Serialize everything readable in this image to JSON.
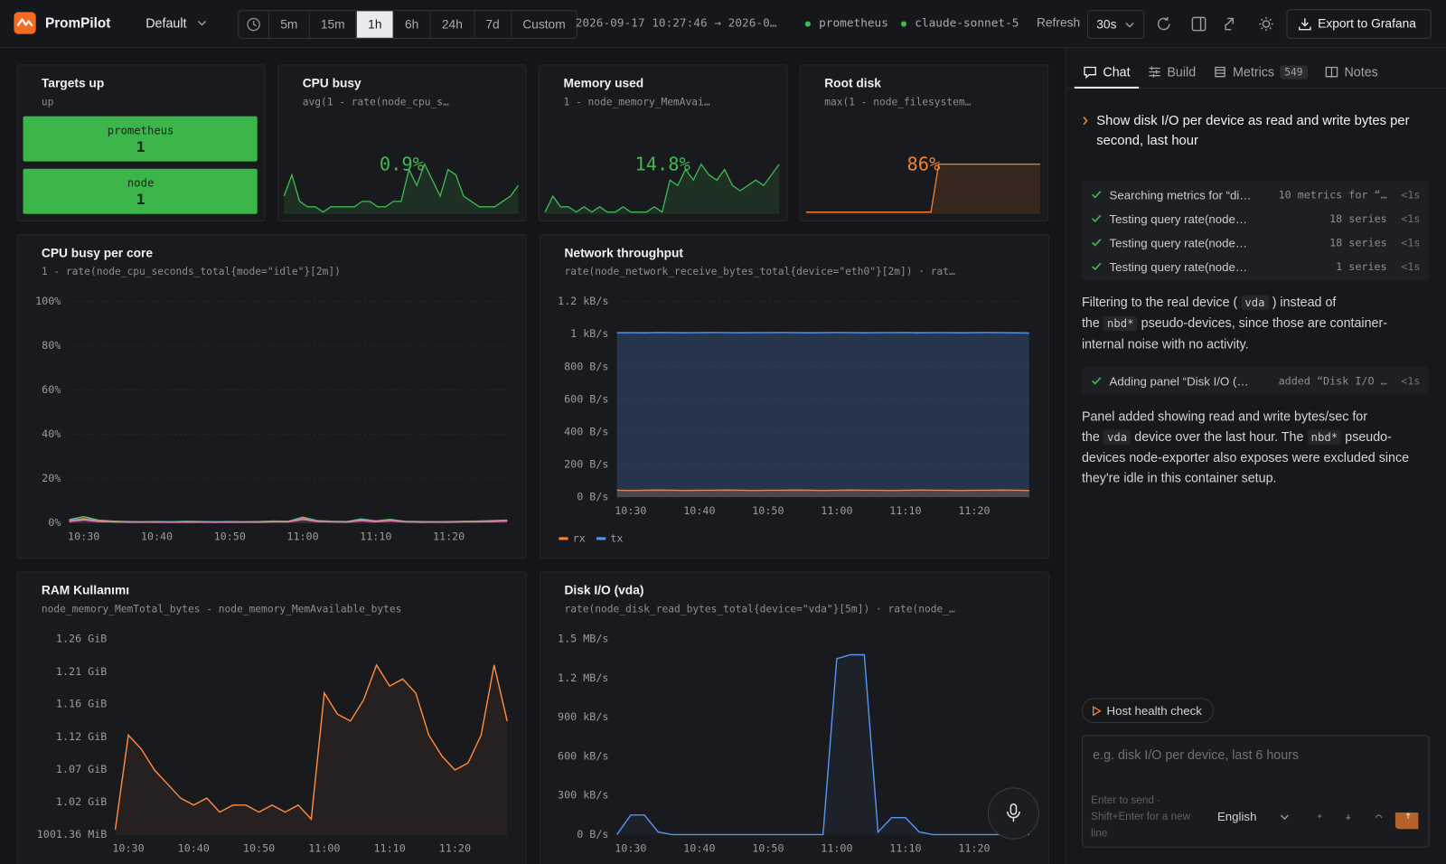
{
  "header": {
    "brand": "PromPilot",
    "workspace": "Default",
    "ranges": [
      "5m",
      "15m",
      "1h",
      "6h",
      "24h",
      "7d",
      "Custom"
    ],
    "selected_range": 2,
    "time_range": "2026-09-17 10:27:46 → 2026-0…",
    "datasource": "prometheus",
    "model": "claude-sonnet-5",
    "refresh_label": "Refresh",
    "refresh": "30s",
    "export": "Export to Grafana"
  },
  "panels": [
    {
      "type": "stat",
      "title": "Targets up",
      "query": "up",
      "items": [
        {
          "label": "prometheus",
          "value": 1
        },
        {
          "label": "node",
          "value": 1
        }
      ],
      "color": "#3cb54a"
    },
    {
      "type": "stat",
      "title": "CPU busy",
      "query": "avg(1 - rate(node_cpu_s…",
      "value": 0.9,
      "value_label": "0.9%",
      "color": "#3fb950",
      "spark": [
        0.8,
        1.2,
        0.7,
        0.6,
        0.6,
        0.5,
        0.6,
        0.6,
        0.6,
        0.6,
        0.7,
        0.7,
        0.6,
        0.6,
        0.7,
        0.7,
        1.3,
        1.0,
        1.4,
        1.1,
        0.8,
        1.3,
        1.2,
        0.8,
        0.7,
        0.6,
        0.6,
        0.6,
        0.7,
        0.8,
        1.0
      ]
    },
    {
      "type": "stat",
      "title": "Memory used",
      "query": "1 - node_memory_MemAvai…",
      "value": 14.8,
      "value_label": "14.8%",
      "color": "#3fb950",
      "spark": [
        14.5,
        14.8,
        14.6,
        14.6,
        14.5,
        14.6,
        14.5,
        14.6,
        14.5,
        14.5,
        14.6,
        14.5,
        14.5,
        14.5,
        14.6,
        14.5,
        15.1,
        15.0,
        15.3,
        15.1,
        15.4,
        15.2,
        15.1,
        15.3,
        15.0,
        14.9,
        15.0,
        15.1,
        15.0,
        15.2,
        15.4
      ]
    },
    {
      "type": "stat",
      "title": "Root disk",
      "query": "max(1 - node_filesystem…",
      "value": 86,
      "value_label": "86%",
      "color": "#f0802e",
      "spark": [
        85.5,
        85.5,
        85.5,
        85.5,
        85.5,
        85.5,
        85.5,
        85.5,
        85.5,
        85.5,
        85.5,
        85.5,
        85.5,
        85.5,
        85.5,
        85.5,
        85.5,
        86.3,
        86.3,
        86.3,
        86.3,
        86.3,
        86.3,
        86.3,
        86.3,
        86.3,
        86.3,
        86.3,
        86.3,
        86.3,
        86.3
      ]
    },
    {
      "type": "line",
      "title": "CPU busy per core",
      "query": "1 - rate(node_cpu_seconds_total{mode=\"idle\"}[2m])",
      "x": [
        "10:28",
        "10:30",
        "10:32",
        "10:34",
        "10:36",
        "10:38",
        "10:40",
        "10:42",
        "10:44",
        "10:46",
        "10:48",
        "10:50",
        "10:52",
        "10:54",
        "10:56",
        "10:58",
        "11:00",
        "11:02",
        "11:04",
        "11:06",
        "11:08",
        "11:10",
        "11:12",
        "11:14",
        "11:16",
        "11:18",
        "11:20",
        "11:22",
        "11:24",
        "11:26",
        "11:28"
      ],
      "xlim": [
        "10:28",
        "11:28"
      ],
      "xticks": [
        "10:30",
        "10:40",
        "10:50",
        "11:00",
        "11:10",
        "11:20"
      ],
      "ylim": [
        0,
        100
      ],
      "yticks": [
        {
          "value": 0,
          "label": "0%"
        },
        {
          "value": 20,
          "label": "20%"
        },
        {
          "value": 40,
          "label": "40%"
        },
        {
          "value": 60,
          "label": "60%"
        },
        {
          "value": 80,
          "label": "80%"
        },
        {
          "value": 100,
          "label": "100%"
        }
      ],
      "grid": true,
      "series": [
        {
          "color": "#73bf69",
          "values": [
            1.5,
            2.8,
            1.2,
            0.8,
            0.6,
            0.5,
            0.6,
            0.5,
            0.7,
            0.6,
            0.5,
            0.6,
            0.5,
            0.6,
            0.8,
            0.7,
            2.6,
            1.0,
            0.7,
            0.6,
            1.8,
            0.9,
            1.6,
            0.7,
            0.6,
            0.5,
            0.6,
            0.7,
            0.8,
            1.0,
            1.2
          ]
        },
        {
          "color": "#5794f2",
          "values": [
            1.0,
            2.0,
            0.9,
            0.6,
            0.5,
            0.4,
            0.5,
            0.4,
            0.5,
            0.5,
            0.4,
            0.5,
            0.4,
            0.5,
            0.6,
            0.6,
            2.2,
            0.8,
            0.6,
            0.5,
            1.5,
            0.7,
            1.3,
            0.6,
            0.5,
            0.4,
            0.5,
            0.6,
            0.6,
            0.8,
            1.0
          ]
        },
        {
          "color": "#ff9830",
          "values": [
            0.8,
            1.6,
            0.8,
            0.5,
            0.4,
            0.4,
            0.4,
            0.3,
            0.4,
            0.4,
            0.3,
            0.4,
            0.4,
            0.4,
            0.5,
            0.5,
            1.8,
            0.7,
            0.5,
            0.4,
            1.2,
            0.6,
            1.1,
            0.5,
            0.4,
            0.4,
            0.4,
            0.5,
            0.5,
            0.7,
            0.9
          ]
        },
        {
          "color": "#e070b8",
          "values": [
            0.6,
            1.3,
            0.6,
            0.4,
            0.3,
            0.3,
            0.3,
            0.3,
            0.3,
            0.3,
            0.3,
            0.3,
            0.3,
            0.3,
            0.4,
            0.4,
            1.5,
            0.6,
            0.4,
            0.3,
            1.0,
            0.5,
            0.9,
            0.4,
            0.3,
            0.3,
            0.3,
            0.4,
            0.4,
            0.6,
            0.8
          ]
        }
      ]
    },
    {
      "type": "line",
      "title": "Network throughput",
      "query": "rate(node_network_receive_bytes_total{device=\"eth0\"}[2m]) · rat…",
      "x": [
        "10:28",
        "10:30",
        "10:32",
        "10:34",
        "10:36",
        "10:38",
        "10:40",
        "10:42",
        "10:44",
        "10:46",
        "10:48",
        "10:50",
        "10:52",
        "10:54",
        "10:56",
        "10:58",
        "11:00",
        "11:02",
        "11:04",
        "11:06",
        "11:08",
        "11:10",
        "11:12",
        "11:14",
        "11:16",
        "11:18",
        "11:20",
        "11:22",
        "11:24",
        "11:26",
        "11:28"
      ],
      "xlim": [
        "10:28",
        "11:28"
      ],
      "xticks": [
        "10:30",
        "10:40",
        "10:50",
        "11:00",
        "11:10",
        "11:20"
      ],
      "ylim": [
        0,
        1200
      ],
      "yticks": [
        {
          "value": 0,
          "label": "0 B/s"
        },
        {
          "value": 200,
          "label": "200 B/s"
        },
        {
          "value": 400,
          "label": "400 B/s"
        },
        {
          "value": 600,
          "label": "600 B/s"
        },
        {
          "value": 800,
          "label": "800 B/s"
        },
        {
          "value": 1000,
          "label": "1 kB/s"
        },
        {
          "value": 1200,
          "label": "1.2 kB/s"
        }
      ],
      "grid": true,
      "area": true,
      "series": [
        {
          "name": "rx",
          "color": "#ff7f32",
          "values": [
            42,
            41,
            42,
            43,
            42,
            41,
            42,
            42,
            43,
            42,
            41,
            42,
            42,
            43,
            42,
            41,
            42,
            43,
            42,
            42,
            41,
            42,
            43,
            42,
            42,
            41,
            42,
            42,
            43,
            42,
            41
          ]
        },
        {
          "name": "tx",
          "color": "#5794f2",
          "values": [
            1008,
            1009,
            1008,
            1010,
            1009,
            1008,
            1009,
            1010,
            1009,
            1008,
            1009,
            1009,
            1010,
            1009,
            1008,
            1009,
            1010,
            1009,
            1008,
            1009,
            1009,
            1010,
            1008,
            1009,
            1009,
            1008,
            1009,
            1010,
            1009,
            1008,
            1007
          ]
        }
      ]
    },
    {
      "type": "line",
      "title": "RAM Kullanımı",
      "query": "node_memory_MemTotal_bytes - node_memory_MemAvailable_bytes",
      "x": [
        "10:28",
        "10:30",
        "10:32",
        "10:34",
        "10:36",
        "10:38",
        "10:40",
        "10:42",
        "10:44",
        "10:46",
        "10:48",
        "10:50",
        "10:52",
        "10:54",
        "10:56",
        "10:58",
        "11:00",
        "11:02",
        "11:04",
        "11:06",
        "11:08",
        "11:10",
        "11:12",
        "11:14",
        "11:16",
        "11:18",
        "11:20",
        "11:22",
        "11:24",
        "11:26",
        "11:28"
      ],
      "xlim": [
        "10:28",
        "11:28"
      ],
      "xticks": [
        "10:30",
        "10:40",
        "10:50",
        "11:00",
        "11:10",
        "11:20"
      ],
      "ylim": [
        0.97789,
        1.257
      ],
      "yticks": [
        {
          "value": 0.97789,
          "label": "1001.36 MiB"
        },
        {
          "value": 1.024,
          "label": "1.02 GiB"
        },
        {
          "value": 1.071,
          "label": "1.07 GiB"
        },
        {
          "value": 1.117,
          "label": "1.12 GiB"
        },
        {
          "value": 1.164,
          "label": "1.16 GiB"
        },
        {
          "value": 1.21,
          "label": "1.21 GiB"
        },
        {
          "value": 1.257,
          "label": "1.26 GiB"
        }
      ],
      "grid": false,
      "series": [
        {
          "color": "#ff8b3d",
          "values": [
            0.985,
            1.12,
            1.1,
            1.07,
            1.05,
            1.03,
            1.02,
            1.03,
            1.01,
            1.02,
            1.02,
            1.01,
            1.02,
            1.01,
            1.02,
            1.0,
            1.18,
            1.15,
            1.14,
            1.17,
            1.22,
            1.19,
            1.2,
            1.18,
            1.12,
            1.09,
            1.07,
            1.08,
            1.12,
            1.22,
            1.14
          ]
        }
      ]
    },
    {
      "type": "line",
      "title": "Disk I/O (vda)",
      "query": "rate(node_disk_read_bytes_total{device=\"vda\"}[5m]) · rate(node_…",
      "x": [
        "10:28",
        "10:30",
        "10:32",
        "10:34",
        "10:36",
        "10:38",
        "10:40",
        "10:42",
        "10:44",
        "10:46",
        "10:48",
        "10:50",
        "10:52",
        "10:54",
        "10:56",
        "10:58",
        "11:00",
        "11:02",
        "11:04",
        "11:06",
        "11:08",
        "11:10",
        "11:12",
        "11:14",
        "11:16",
        "11:18",
        "11:20",
        "11:22",
        "11:24",
        "11:26",
        "11:28"
      ],
      "xlim": [
        "10:28",
        "11:28"
      ],
      "xticks": [
        "10:30",
        "10:40",
        "10:50",
        "11:00",
        "11:10",
        "11:20"
      ],
      "ylim": [
        0,
        1500
      ],
      "yticks": [
        {
          "value": 0,
          "label": "0 B/s"
        },
        {
          "value": 300,
          "label": "300 kB/s"
        },
        {
          "value": 600,
          "label": "600 kB/s"
        },
        {
          "value": 900,
          "label": "900 kB/s"
        },
        {
          "value": 1200,
          "label": "1.2 MB/s"
        },
        {
          "value": 1500,
          "label": "1.5 MB/s"
        }
      ],
      "grid": false,
      "series": [
        {
          "color": "#5794f2",
          "values": [
            0,
            150,
            150,
            20,
            0,
            0,
            0,
            0,
            0,
            0,
            0,
            0,
            0,
            0,
            0,
            0,
            1350,
            1380,
            1380,
            20,
            130,
            130,
            20,
            0,
            0,
            0,
            0,
            0,
            0,
            0,
            0
          ]
        }
      ]
    }
  ],
  "chat": {
    "tabs": [
      {
        "label": "Chat"
      },
      {
        "label": "Build"
      },
      {
        "label": "Metrics",
        "badge": 549
      },
      {
        "label": "Notes"
      }
    ],
    "active_tab": 0,
    "prompt": "Show disk I/O per device as read and write bytes per second, last hour",
    "feed": [
      {
        "steps": [
          {
            "text": "Searching metrics for “di…",
            "detail": "10 metrics for “…",
            "time": "<1s"
          },
          {
            "text": "Testing query rate(node…",
            "detail": "18 series",
            "time": "<1s"
          },
          {
            "text": "Testing query rate(node…",
            "detail": "18 series",
            "time": "<1s"
          },
          {
            "text": "Testing query rate(node…",
            "detail": "1 series",
            "time": "<1s"
          }
        ]
      },
      {
        "segments": [
          {
            "text": "Filtering to the real device ("
          },
          {
            "code": "vda"
          },
          {
            "text": ") instead of the"
          },
          {
            "code": "nbd*"
          },
          {
            "text": "pseudo-devices, since those are container-internal noise with no activity."
          }
        ]
      },
      {
        "steps": [
          {
            "text": "Adding panel “Disk I/O (…",
            "detail": "added “Disk I/O …",
            "time": "<1s"
          }
        ]
      },
      {
        "segments": [
          {
            "text": "Panel added showing read and write bytes/sec for the"
          },
          {
            "code": "vda"
          },
          {
            "text": "device over the last hour. The"
          },
          {
            "code": "nbd*"
          },
          {
            "text": "pseudo-devices node-exporter also exposes were excluded since they're idle in this container setup."
          }
        ]
      }
    ],
    "suggestion": "Host health check",
    "placeholder": "e.g. disk I/O per device, last 6 hours",
    "hint": "Enter to send · Shift+Enter for a new line",
    "language": "English"
  }
}
